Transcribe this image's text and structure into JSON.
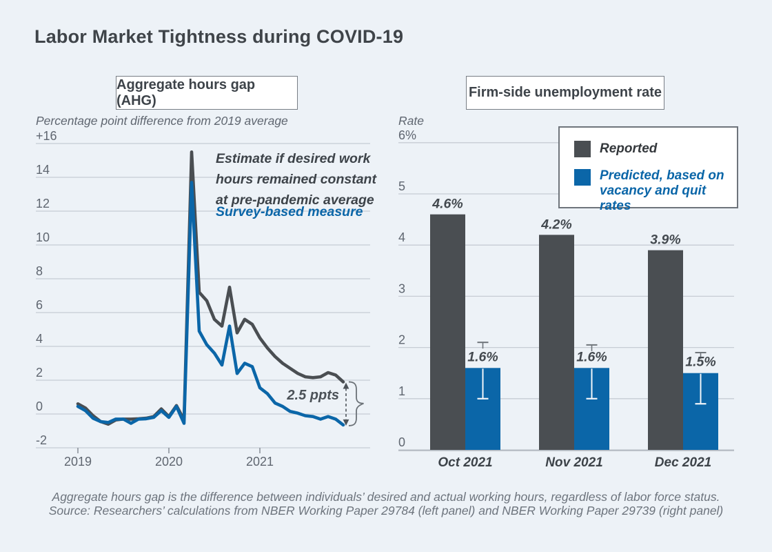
{
  "title": "Labor Market Tightness during COVID-19",
  "colors": {
    "background": "#edf2f7",
    "dark": "#4a4e52",
    "blue": "#0b66a8",
    "grid": "#c6ccd4",
    "axis_text": "#5f6670",
    "text_dark": "#3d4349",
    "title": "#3f4449",
    "border": "#777d84",
    "footnote": "#6d747d",
    "baseline": "#b3bac2",
    "whisker_gray": "#6e747a",
    "whisker_white": "#f2f5f9",
    "annotation_gray": "#4b5157"
  },
  "left_panel": {
    "header": "Aggregate hours gap (AHG)",
    "axis_title": "Percentage point difference from 2019 average",
    "note_constant_hours": [
      "Estimate if desired work",
      "hours remained constant",
      "at pre-pandemic average"
    ],
    "note_survey": "Survey-based measure",
    "gap_annotation": "2.5 ppts"
  },
  "right_panel": {
    "header": "Firm-side unemployment rate",
    "axis_title": "Rate",
    "legend": [
      {
        "label": "Reported",
        "color": "#4a4e52"
      },
      {
        "label": "Predicted, based on vacancy and quit rates",
        "color": "#0b66a8"
      }
    ]
  },
  "footnote": {
    "line1": "Aggregate hours gap is the difference between individuals’ desired and actual working hours, regardless of labor force status.",
    "line2": "Source: Researchers’ calculations from NBER Working Paper 29784 (left panel) and NBER Working Paper 29739 (right panel)"
  },
  "chart_data": [
    {
      "type": "line",
      "title": "Aggregate hours gap (AHG)",
      "ylabel": "Percentage point difference from 2019 average",
      "x_start": "2019-01",
      "x_step": "monthly",
      "x_tick_labels": [
        "2019",
        "2020",
        "2021"
      ],
      "y_ticks": [
        16,
        14,
        12,
        10,
        8,
        6,
        4,
        2,
        0,
        -2
      ],
      "y_tick_labels": [
        "+16",
        "14",
        "12",
        "10",
        "8",
        "6",
        "4",
        "2",
        "0",
        "-2"
      ],
      "ylim": [
        -2,
        16
      ],
      "grid": true,
      "series": [
        {
          "name": "Estimate if desired work hours remained constant at pre-pandemic average",
          "color_key": "dark",
          "values": [
            0.6,
            0.35,
            -0.1,
            -0.45,
            -0.6,
            -0.35,
            -0.3,
            -0.3,
            -0.28,
            -0.25,
            -0.15,
            0.3,
            -0.15,
            0.5,
            -0.35,
            15.5,
            7.2,
            6.7,
            5.6,
            5.2,
            7.5,
            4.8,
            5.6,
            5.3,
            4.5,
            3.9,
            3.4,
            3.0,
            2.7,
            2.4,
            2.2,
            2.15,
            2.2,
            2.45,
            2.3,
            1.9
          ]
        },
        {
          "name": "Survey-based measure",
          "color_key": "blue",
          "values": [
            0.45,
            0.2,
            -0.25,
            -0.45,
            -0.5,
            -0.3,
            -0.3,
            -0.55,
            -0.3,
            -0.28,
            -0.2,
            0.2,
            -0.2,
            0.45,
            -0.55,
            13.7,
            4.9,
            4.1,
            3.6,
            2.9,
            5.2,
            2.4,
            3.0,
            2.8,
            1.55,
            1.2,
            0.65,
            0.45,
            0.15,
            0.05,
            -0.1,
            -0.15,
            -0.3,
            -0.15,
            -0.3,
            -0.65
          ]
        }
      ],
      "end_gap_ppts": 2.5
    },
    {
      "type": "bar",
      "title": "Firm-side unemployment rate",
      "ylabel": "Rate",
      "categories": [
        "Oct 2021",
        "Nov 2021",
        "Dec 2021"
      ],
      "y_ticks": [
        6,
        5,
        4,
        3,
        2,
        1,
        0
      ],
      "y_tick_labels": [
        "6%",
        "5",
        "4",
        "3",
        "2",
        "1",
        "0"
      ],
      "ylim": [
        0,
        6
      ],
      "grid": true,
      "legend_position": "top-right",
      "series": [
        {
          "name": "Reported",
          "color_key": "dark",
          "values": [
            4.6,
            4.2,
            3.9
          ]
        },
        {
          "name": "Predicted, based on vacancy and quit rates",
          "color_key": "blue",
          "values": [
            1.6,
            1.6,
            1.5
          ],
          "error_low": [
            1.0,
            1.0,
            0.9
          ],
          "error_high": [
            2.1,
            2.05,
            1.9
          ]
        }
      ]
    }
  ]
}
